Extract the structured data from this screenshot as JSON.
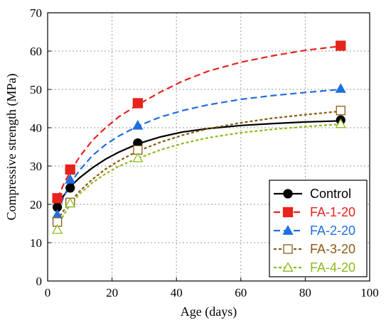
{
  "chart_data": {
    "type": "scatter",
    "xlabel": "Age (days)",
    "ylabel": "Compressive strength (MPa)",
    "xlim": [
      0,
      100
    ],
    "ylim": [
      0,
      70
    ],
    "xticks": [
      0,
      20,
      40,
      60,
      80,
      100
    ],
    "yticks": [
      0,
      10,
      20,
      30,
      40,
      50,
      60,
      70
    ],
    "grid": true,
    "legend_position": "bottom-right",
    "series": [
      {
        "name": "Control",
        "color": "#000000",
        "marker": "circle",
        "filled": true,
        "line_style": "solid",
        "x": [
          3,
          7,
          28,
          91
        ],
        "y": [
          19.3,
          24.3,
          36.0,
          42.0
        ],
        "fit_curve": [
          [
            3,
            19.6
          ],
          [
            5,
            22.3
          ],
          [
            7,
            24.6
          ],
          [
            10,
            27.0
          ],
          [
            14,
            29.6
          ],
          [
            18,
            31.8
          ],
          [
            22,
            33.6
          ],
          [
            28,
            35.8
          ],
          [
            35,
            37.6
          ],
          [
            42,
            38.9
          ],
          [
            50,
            39.8
          ],
          [
            60,
            40.6
          ],
          [
            70,
            41.1
          ],
          [
            80,
            41.5
          ],
          [
            91,
            41.8
          ]
        ]
      },
      {
        "name": "FA-1-20",
        "color": "#e8231c",
        "marker": "square",
        "filled": true,
        "line_style": "dashed",
        "x": [
          3,
          7,
          28,
          91
        ],
        "y": [
          21.6,
          29.1,
          46.4,
          61.4
        ],
        "fit_curve": [
          [
            3,
            21.6
          ],
          [
            5,
            25.3
          ],
          [
            7,
            28.5
          ],
          [
            10,
            32.5
          ],
          [
            14,
            36.8
          ],
          [
            18,
            40.0
          ],
          [
            22,
            42.8
          ],
          [
            28,
            46.0
          ],
          [
            35,
            49.3
          ],
          [
            42,
            52.2
          ],
          [
            50,
            54.8
          ],
          [
            60,
            57.1
          ],
          [
            70,
            58.8
          ],
          [
            80,
            60.2
          ],
          [
            91,
            61.3
          ]
        ]
      },
      {
        "name": "FA-2-20",
        "color": "#1f6fe0",
        "marker": "triangle",
        "filled": true,
        "line_style": "dashed",
        "x": [
          3,
          7,
          28,
          91
        ],
        "y": [
          17.3,
          26.5,
          40.6,
          50.2
        ],
        "fit_curve": [
          [
            3,
            17.8
          ],
          [
            5,
            22.0
          ],
          [
            7,
            25.4
          ],
          [
            10,
            29.0
          ],
          [
            14,
            32.8
          ],
          [
            18,
            35.6
          ],
          [
            22,
            37.8
          ],
          [
            28,
            40.4
          ],
          [
            35,
            42.8
          ],
          [
            42,
            44.5
          ],
          [
            50,
            46.0
          ],
          [
            60,
            47.4
          ],
          [
            70,
            48.4
          ],
          [
            80,
            49.2
          ],
          [
            91,
            50.0
          ]
        ]
      },
      {
        "name": "FA-3-20",
        "color": "#8b5a12",
        "marker": "square",
        "filled": false,
        "line_style": "dotted",
        "x": [
          3,
          7,
          28,
          91
        ],
        "y": [
          15.4,
          20.5,
          34.2,
          44.5
        ],
        "fit_curve": [
          [
            3,
            15.9
          ],
          [
            5,
            18.4
          ],
          [
            7,
            20.6
          ],
          [
            10,
            23.5
          ],
          [
            14,
            26.6
          ],
          [
            18,
            29.2
          ],
          [
            22,
            31.3
          ],
          [
            28,
            33.9
          ],
          [
            35,
            36.2
          ],
          [
            42,
            38.1
          ],
          [
            50,
            39.8
          ],
          [
            60,
            41.3
          ],
          [
            70,
            42.5
          ],
          [
            80,
            43.4
          ],
          [
            91,
            44.3
          ]
        ]
      },
      {
        "name": "FA-4-20",
        "color": "#8fba1a",
        "marker": "triangle",
        "filled": false,
        "line_style": "dotted",
        "x": [
          3,
          7,
          28,
          91
        ],
        "y": [
          13.4,
          20.3,
          32.1,
          41.0
        ],
        "fit_curve": [
          [
            3,
            14.2
          ],
          [
            5,
            17.3
          ],
          [
            7,
            19.9
          ],
          [
            10,
            22.8
          ],
          [
            14,
            25.7
          ],
          [
            18,
            28.0
          ],
          [
            22,
            29.9
          ],
          [
            28,
            32.0
          ],
          [
            35,
            34.2
          ],
          [
            42,
            35.9
          ],
          [
            50,
            37.4
          ],
          [
            60,
            38.7
          ],
          [
            70,
            39.6
          ],
          [
            80,
            40.3
          ],
          [
            91,
            40.9
          ]
        ]
      }
    ]
  }
}
